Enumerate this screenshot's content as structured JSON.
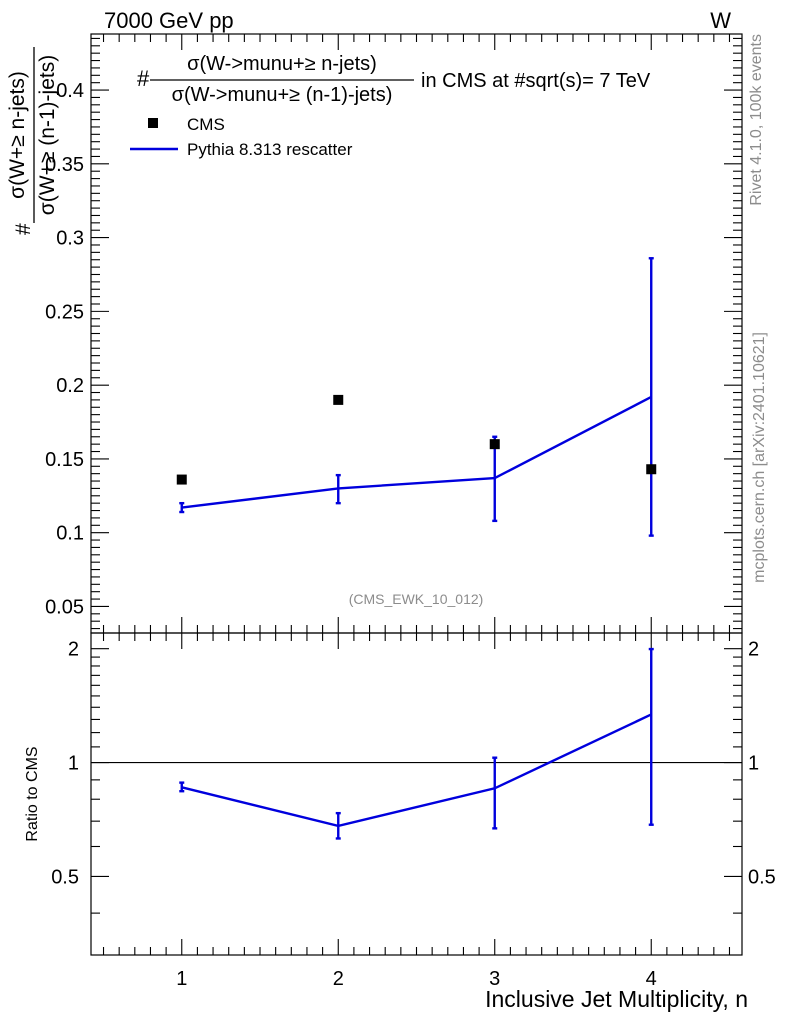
{
  "header": {
    "left_label": "7000 GeV pp",
    "right_label": "W"
  },
  "side_labels": {
    "rivet": "Rivet 4.1.0,  100k events",
    "mcplots": "mcplots.cern.ch [arXiv:2401.10621]"
  },
  "title": {
    "hash": "#",
    "numerator": "σ(W->munu+≥ n-jets)",
    "denominator": "σ(W->munu+≥ (n-1)-jets)",
    "suffix": "in CMS at #sqrt(s)= 7 TeV"
  },
  "ylabel": {
    "hash": "#",
    "numerator": "σ(W+≥ n-jets)",
    "denominator": "σ(W+≥ (n-1)-jets)"
  },
  "analysis_id": "(CMS_EWK_10_012)",
  "ratio_ylabel": "Ratio to CMS",
  "xlabel": "Inclusive Jet Multiplicity, n",
  "legend": {
    "data_label": "CMS",
    "mc_label": "Pythia 8.313 rescatter"
  },
  "colors": {
    "data": "#000000",
    "mc": "#0000dd",
    "axis": "#000000",
    "gray_text": "#8c8c8c"
  },
  "chart_data": {
    "type": "scatter",
    "xlim": [
      0.42,
      4.58
    ],
    "main_ylim": [
      0.032,
      0.438
    ],
    "ratio_ylim": [
      0.31,
      2.2
    ],
    "x_ticks": [
      1,
      2,
      3,
      4
    ],
    "x_tick_labels": [
      "1",
      "2",
      "3",
      "4"
    ],
    "main_y_ticks": [
      0.05,
      0.1,
      0.15,
      0.2,
      0.25,
      0.3,
      0.35,
      0.4
    ],
    "main_y_tick_labels": [
      "0.05",
      "0.1",
      "0.15",
      "0.2",
      "0.25",
      "0.3",
      "0.35",
      "0.4"
    ],
    "ratio_y_ticks": [
      0.5,
      1,
      2
    ],
    "ratio_y_tick_labels": [
      "0.5",
      "1",
      "2"
    ],
    "series": [
      {
        "name": "CMS",
        "kind": "points",
        "x": [
          1,
          2,
          3,
          4
        ],
        "y": [
          0.136,
          0.19,
          0.16,
          0.143
        ]
      },
      {
        "name": "Pythia 8.313 rescatter",
        "kind": "line",
        "x": [
          1,
          2,
          3,
          4
        ],
        "y": [
          0.117,
          0.13,
          0.137,
          0.192
        ],
        "y_low": [
          0.114,
          0.12,
          0.108,
          0.098
        ],
        "y_high": [
          0.12,
          0.139,
          0.165,
          0.286
        ]
      }
    ],
    "ratio_series": {
      "name": "Pythia 8.313 rescatter / CMS",
      "x": [
        1,
        2,
        3,
        4
      ],
      "y": [
        0.86,
        0.68,
        0.855,
        1.34
      ],
      "y_low": [
        0.84,
        0.63,
        0.67,
        0.685
      ],
      "y_high": [
        0.885,
        0.735,
        1.03,
        1.995
      ]
    },
    "reference_line": 1
  }
}
